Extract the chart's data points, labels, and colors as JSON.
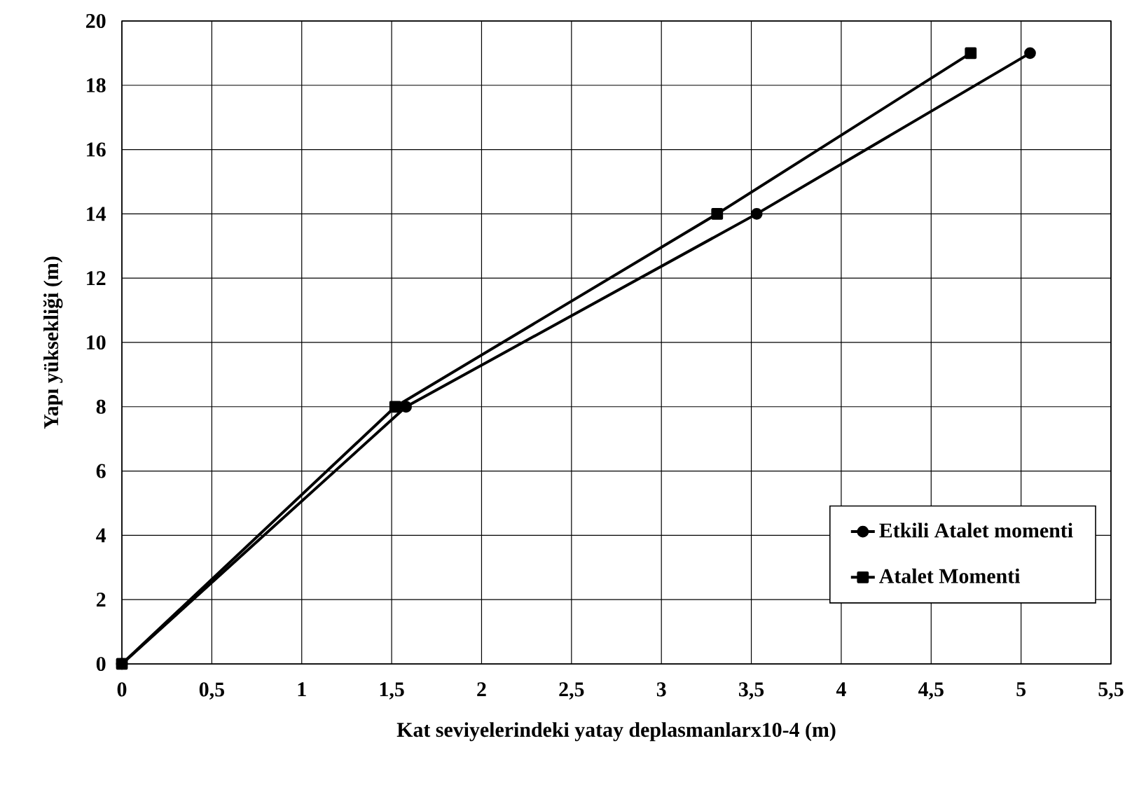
{
  "chart_data": {
    "type": "line",
    "xlabel": "Kat seviyelerindeki yatay deplasmanlarx10-4 (m)",
    "ylabel": "Yapı yüksekliği (m)",
    "xlim": [
      0,
      5.5
    ],
    "ylim": [
      0,
      20
    ],
    "xticks": [
      0,
      {
        "value": 0.5,
        "label": "0,5"
      },
      1,
      {
        "value": 1.5,
        "label": "1,5"
      },
      2,
      {
        "value": 2.5,
        "label": "2,5"
      },
      3,
      {
        "value": 3.5,
        "label": "3,5"
      },
      4,
      {
        "value": 4.5,
        "label": "4,5"
      },
      5,
      {
        "value": 5.5,
        "label": "5,5"
      }
    ],
    "yticks": [
      0,
      2,
      4,
      6,
      8,
      10,
      12,
      14,
      16,
      18,
      20
    ],
    "grid": true,
    "legend": "bottom right",
    "line_style": "solid",
    "series": [
      {
        "name": "Etkili Atalet momenti",
        "color": "#000000",
        "marker": "circle",
        "x": [
          0,
          1.58,
          3.53,
          5.05
        ],
        "values": [
          0,
          8,
          14,
          19
        ]
      },
      {
        "name": "Atalet Momenti",
        "color": "#000000",
        "marker": "square",
        "x": [
          0,
          1.52,
          3.31,
          4.72
        ],
        "values": [
          0,
          8,
          14,
          19
        ]
      }
    ]
  }
}
